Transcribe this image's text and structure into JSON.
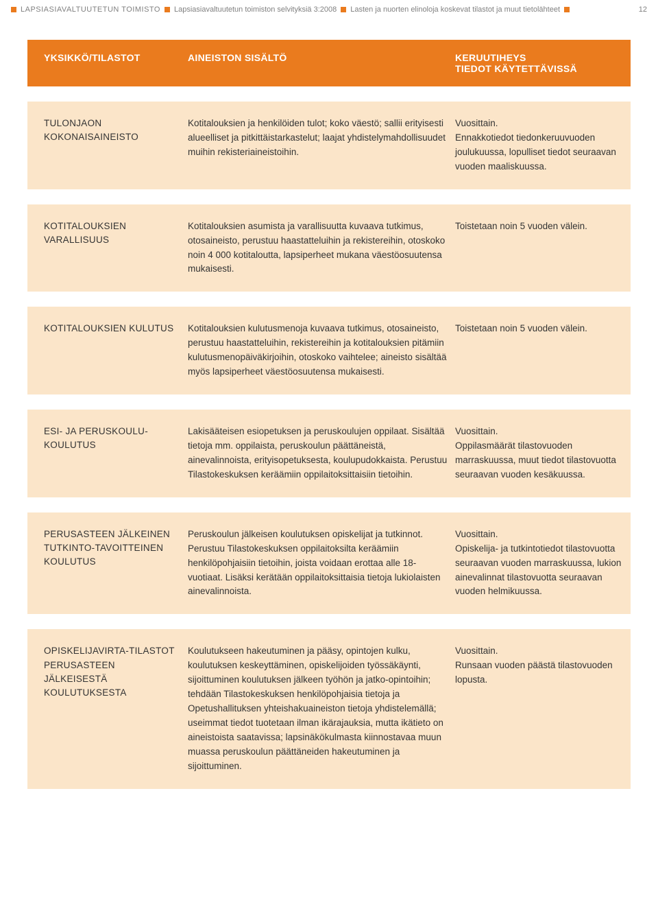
{
  "header": {
    "org": "LAPSIASIAVALTUUTETUN TOIMISTO",
    "series": "Lapsiasiavaltuutetun toimiston selvityksiä 3:2008",
    "title": "Lasten ja nuorten elinoloja koskevat tilastot ja muut tietolähteet",
    "page": "12",
    "square_color": "#ea7b1e"
  },
  "table": {
    "header_bg": "#ea7b1e",
    "row_bg": "#fbe5c9",
    "header_text_color": "#ffffff",
    "body_text_color": "#333333",
    "columns": {
      "c1": "YKSIKKÖ/TILASTOT",
      "c2": "AINEISTON SISÄLTÖ",
      "c3_line1": "KERUUTIHEYS",
      "c3_line2": "TIEDOT KÄYTETTÄVISSÄ"
    },
    "rows": [
      {
        "c1": "TULONJAON KOKONAISAINEISTO",
        "c2": "Kotitalouksien ja henkilöiden tulot; koko väestö; sallii erityisesti alueelliset ja pitkittäistarkastelut; laajat yhdistelymahdollisuudet muihin rekisteriaineistoihin.",
        "c3": "Vuosittain.\nEnnakkotiedot tiedonkeruuvuoden joulukuussa, lopulliset tiedot seuraavan vuoden maaliskuussa."
      },
      {
        "c1": "KOTITALOUKSIEN VARALLISUUS",
        "c2": "Kotitalouksien asumista ja varallisuutta kuvaava tutkimus, otosaineisto, perustuu haastatteluihin ja rekistereihin, otoskoko noin 4 000 kotitaloutta, lapsiperheet mukana väestöosuutensa mukaisesti.",
        "c3": "Toistetaan noin 5 vuoden välein."
      },
      {
        "c1": "KOTITALOUKSIEN KULUTUS",
        "c2": "Kotitalouksien kulutusmenoja kuvaava tutkimus, otosaineisto, perustuu haastatteluihin, rekistereihin ja kotitalouksien pitämiin kulutusmenopäiväkirjoihin, otoskoko vaihtelee; aineisto sisältää myös lapsiperheet väestöosuutensa mukaisesti.",
        "c3": "Toistetaan noin 5 vuoden välein."
      },
      {
        "c1": "ESI- JA PERUSKOULU-KOULUTUS",
        "c2": "Lakisääteisen esiopetuksen ja peruskoulujen oppilaat. Sisältää tietoja mm. oppilaista, peruskoulun päättäneistä, ainevalinnoista, erityisopetuksesta, koulupudokkaista. Perustuu Tilastokeskuksen keräämiin oppilaitoksittaisiin tietoihin.",
        "c3": "Vuosittain.\nOppilasmäärät tilastovuoden marraskuussa, muut tiedot tilastovuotta seuraavan vuoden kesäkuussa."
      },
      {
        "c1": "PERUSASTEEN JÄLKEINEN TUTKINTO-TAVOITTEINEN KOULUTUS",
        "c2": "Peruskoulun jälkeisen koulutuksen opiskelijat ja tutkinnot. Perustuu Tilastokeskuksen oppilaitoksilta keräämiin henkilöpohjaisiin tietoihin, joista voidaan erottaa alle 18-vuotiaat. Lisäksi kerätään oppilaitoksittaisia tietoja lukiolaisten ainevalinnoista.",
        "c3": "Vuosittain.\nOpiskelija- ja tutkintotiedot tilastovuotta seuraavan vuoden marraskuussa, lukion ainevalinnat tilastovuotta seuraavan vuoden helmikuussa."
      },
      {
        "c1": "OPISKELIJAVIRTA-TILASTOT PERUSASTEEN JÄLKEISESTÄ KOULUTUKSESTA",
        "c2": "Koulutukseen hakeutuminen ja pääsy, opintojen kulku, koulutuksen keskeyttäminen, opiskelijoiden työssäkäynti, sijoittuminen koulutuksen jälkeen työhön ja jatko-opintoihin; tehdään Tilastokeskuksen henkilöpohjaisia tietoja ja Opetushallituksen yhteishakuaineiston tietoja yhdistelemällä; useimmat tiedot tuotetaan ilman ikärajauksia, mutta ikätieto on aineistoista saatavissa; lapsinäkökulmasta kiinnostavaa muun muassa peruskoulun päättäneiden hakeutuminen ja sijoittuminen.",
        "c3": "Vuosittain.\nRunsaan vuoden päästä tilastovuoden lopusta."
      }
    ]
  }
}
